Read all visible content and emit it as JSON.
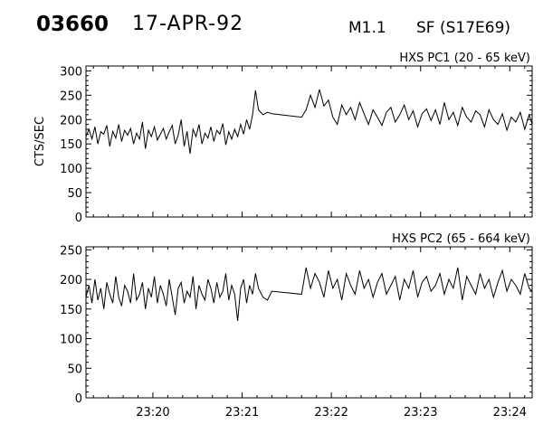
{
  "header": {
    "event_id": "03660",
    "date": "17-APR-92",
    "flare_class": "M1.1",
    "flare_info": "SF (S17E69)"
  },
  "chart_data": [
    {
      "type": "line",
      "title": "HXS PC1 (20 - 65 keV)",
      "ylabel": "CTS/SEC",
      "xlabel": "",
      "ylim": [
        0,
        310
      ],
      "yticks": [
        0,
        50,
        100,
        150,
        200,
        250,
        300
      ],
      "xlim": [
        "23:19:15",
        "23:24:15"
      ],
      "xticks": [
        "23:20",
        "23:21",
        "23:22",
        "23:23",
        "23:24"
      ],
      "series": [
        {
          "x": [
            "23:19:15",
            "23:19:17",
            "23:19:19",
            "23:19:21",
            "23:19:23",
            "23:19:25",
            "23:19:27",
            "23:19:29",
            "23:19:31",
            "23:19:33",
            "23:19:35",
            "23:19:37",
            "23:19:39",
            "23:19:41",
            "23:19:43",
            "23:19:45",
            "23:19:47",
            "23:19:49",
            "23:19:51",
            "23:19:53",
            "23:19:55",
            "23:19:57",
            "23:19:59",
            "23:20:01",
            "23:20:03",
            "23:20:05",
            "23:20:07",
            "23:20:09",
            "23:20:11",
            "23:20:13",
            "23:20:15",
            "23:20:17",
            "23:20:19",
            "23:20:21",
            "23:20:23",
            "23:20:25",
            "23:20:27",
            "23:20:29",
            "23:20:31",
            "23:20:33",
            "23:20:35",
            "23:20:37",
            "23:20:39",
            "23:20:41",
            "23:20:43",
            "23:20:45",
            "23:20:47",
            "23:20:49",
            "23:20:51",
            "23:20:53",
            "23:20:55",
            "23:20:57",
            "23:20:59",
            "23:21:01",
            "23:21:03",
            "23:21:05",
            "23:21:07",
            "23:21:09",
            "23:21:11",
            "23:21:14",
            "23:21:17",
            "23:21:20",
            "23:21:40",
            "23:21:43",
            "23:21:46",
            "23:21:49",
            "23:21:52",
            "23:21:55",
            "23:21:58",
            "23:22:01",
            "23:22:04",
            "23:22:07",
            "23:22:10",
            "23:22:13",
            "23:22:16",
            "23:22:19",
            "23:22:22",
            "23:22:25",
            "23:22:28",
            "23:22:31",
            "23:22:34",
            "23:22:37",
            "23:22:40",
            "23:22:43",
            "23:22:46",
            "23:22:49",
            "23:22:52",
            "23:22:55",
            "23:22:58",
            "23:23:01",
            "23:23:04",
            "23:23:07",
            "23:23:10",
            "23:23:13",
            "23:23:16",
            "23:23:19",
            "23:23:22",
            "23:23:25",
            "23:23:28",
            "23:23:31",
            "23:23:34",
            "23:23:37",
            "23:23:40",
            "23:23:43",
            "23:23:46",
            "23:23:49",
            "23:23:52",
            "23:23:55",
            "23:23:58",
            "23:24:01",
            "23:24:04",
            "23:24:07",
            "23:24:10",
            "23:24:13",
            "23:24:15"
          ],
          "values": [
            165,
            180,
            160,
            185,
            150,
            175,
            170,
            188,
            145,
            176,
            162,
            190,
            155,
            178,
            168,
            182,
            150,
            172,
            160,
            195,
            140,
            178,
            165,
            185,
            158,
            170,
            182,
            160,
            175,
            188,
            150,
            168,
            200,
            145,
            176,
            130,
            180,
            165,
            190,
            150,
            172,
            162,
            185,
            155,
            178,
            170,
            192,
            148,
            175,
            160,
            180,
            165,
            190,
            170,
            200,
            180,
            210,
            260,
            220,
            210,
            215,
            212,
            205,
            220,
            250,
            225,
            262,
            228,
            240,
            205,
            190,
            230,
            210,
            225,
            200,
            235,
            212,
            190,
            220,
            205,
            188,
            215,
            225,
            195,
            210,
            230,
            200,
            218,
            185,
            212,
            222,
            198,
            220,
            190,
            235,
            200,
            215,
            188,
            225,
            205,
            195,
            218,
            210,
            185,
            220,
            200,
            190,
            212,
            178,
            205,
            195,
            215,
            180,
            210,
            190
          ]
        }
      ]
    },
    {
      "type": "line",
      "title": "HXS PC2 (65 - 664 keV)",
      "ylabel": "",
      "xlabel": "",
      "ylim": [
        0,
        255
      ],
      "yticks": [
        0,
        50,
        100,
        150,
        200,
        250
      ],
      "xlim": [
        "23:19:15",
        "23:24:15"
      ],
      "xticks": [
        "23:20",
        "23:21",
        "23:22",
        "23:23",
        "23:24"
      ],
      "series": [
        {
          "x": [
            "23:19:15",
            "23:19:17",
            "23:19:19",
            "23:19:21",
            "23:19:23",
            "23:19:25",
            "23:19:27",
            "23:19:29",
            "23:19:31",
            "23:19:33",
            "23:19:35",
            "23:19:37",
            "23:19:39",
            "23:19:41",
            "23:19:43",
            "23:19:45",
            "23:19:47",
            "23:19:49",
            "23:19:51",
            "23:19:53",
            "23:19:55",
            "23:19:57",
            "23:19:59",
            "23:20:01",
            "23:20:03",
            "23:20:05",
            "23:20:07",
            "23:20:09",
            "23:20:11",
            "23:20:13",
            "23:20:15",
            "23:20:17",
            "23:20:19",
            "23:20:21",
            "23:20:23",
            "23:20:25",
            "23:20:27",
            "23:20:29",
            "23:20:31",
            "23:20:33",
            "23:20:35",
            "23:20:37",
            "23:20:39",
            "23:20:41",
            "23:20:43",
            "23:20:45",
            "23:20:47",
            "23:20:49",
            "23:20:51",
            "23:20:53",
            "23:20:55",
            "23:20:57",
            "23:20:59",
            "23:21:01",
            "23:21:03",
            "23:21:05",
            "23:21:07",
            "23:21:09",
            "23:21:11",
            "23:21:14",
            "23:21:17",
            "23:21:20",
            "23:21:40",
            "23:21:43",
            "23:21:46",
            "23:21:49",
            "23:21:52",
            "23:21:55",
            "23:21:58",
            "23:22:01",
            "23:22:04",
            "23:22:07",
            "23:22:10",
            "23:22:13",
            "23:22:16",
            "23:22:19",
            "23:22:22",
            "23:22:25",
            "23:22:28",
            "23:22:31",
            "23:22:34",
            "23:22:37",
            "23:22:40",
            "23:22:43",
            "23:22:46",
            "23:22:49",
            "23:22:52",
            "23:22:55",
            "23:22:58",
            "23:23:01",
            "23:23:04",
            "23:23:07",
            "23:23:10",
            "23:23:13",
            "23:23:16",
            "23:23:19",
            "23:23:22",
            "23:23:25",
            "23:23:28",
            "23:23:31",
            "23:23:34",
            "23:23:37",
            "23:23:40",
            "23:23:43",
            "23:23:46",
            "23:23:49",
            "23:23:52",
            "23:23:55",
            "23:23:58",
            "23:24:01",
            "23:24:04",
            "23:24:07",
            "23:24:10",
            "23:24:13",
            "23:24:15"
          ],
          "values": [
            170,
            190,
            160,
            200,
            165,
            185,
            150,
            195,
            175,
            160,
            205,
            170,
            155,
            190,
            180,
            160,
            210,
            165,
            175,
            195,
            150,
            185,
            170,
            205,
            160,
            190,
            175,
            155,
            200,
            170,
            140,
            185,
            195,
            160,
            180,
            170,
            205,
            150,
            190,
            175,
            165,
            200,
            185,
            160,
            195,
            170,
            180,
            210,
            165,
            190,
            175,
            130,
            185,
            200,
            160,
            190,
            175,
            210,
            185,
            170,
            165,
            180,
            175,
            220,
            185,
            210,
            195,
            170,
            215,
            185,
            200,
            165,
            210,
            190,
            175,
            215,
            185,
            200,
            170,
            195,
            210,
            175,
            190,
            205,
            165,
            200,
            185,
            215,
            170,
            195,
            205,
            180,
            190,
            210,
            175,
            200,
            185,
            220,
            165,
            205,
            190,
            175,
            210,
            185,
            200,
            170,
            195,
            215,
            180,
            200,
            190,
            175,
            210,
            185,
            180
          ]
        }
      ]
    }
  ]
}
